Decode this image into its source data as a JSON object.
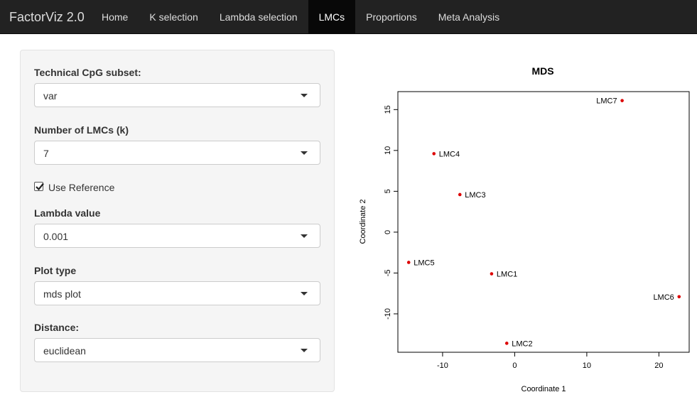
{
  "navbar": {
    "brand": "FactorViz 2.0",
    "items": [
      {
        "label": "Home",
        "active": false
      },
      {
        "label": "K selection",
        "active": false
      },
      {
        "label": "Lambda selection",
        "active": false
      },
      {
        "label": "LMCs",
        "active": true
      },
      {
        "label": "Proportions",
        "active": false
      },
      {
        "label": "Meta Analysis",
        "active": false
      }
    ]
  },
  "sidebar": {
    "cpg_subset": {
      "label": "Technical CpG subset:",
      "value": "var"
    },
    "num_lmcs": {
      "label": "Number of LMCs (k)",
      "value": "7"
    },
    "use_reference": {
      "label": "Use Reference",
      "checked": true
    },
    "lambda": {
      "label": "Lambda value",
      "value": "0.001"
    },
    "plot_type": {
      "label": "Plot type",
      "value": "mds plot"
    },
    "distance": {
      "label": "Distance:",
      "value": "euclidean"
    }
  },
  "chart_data": {
    "type": "scatter",
    "title": "MDS",
    "xlabel": "Coordinate 1",
    "ylabel": "Coordinate 2",
    "xlim": [
      -16.2,
      24.2
    ],
    "ylim": [
      -14.7,
      17.2
    ],
    "xticks": [
      -10,
      0,
      10,
      20
    ],
    "yticks": [
      -10,
      -5,
      0,
      5,
      10,
      15
    ],
    "point_color": "#dd0000",
    "points": [
      {
        "label": "LMC1",
        "x": -3.2,
        "y": -5.1,
        "label_side": "right"
      },
      {
        "label": "LMC2",
        "x": -1.1,
        "y": -13.6,
        "label_side": "right"
      },
      {
        "label": "LMC3",
        "x": -7.6,
        "y": 4.6,
        "label_side": "right"
      },
      {
        "label": "LMC4",
        "x": -11.2,
        "y": 9.6,
        "label_side": "right"
      },
      {
        "label": "LMC5",
        "x": -14.7,
        "y": -3.7,
        "label_side": "right"
      },
      {
        "label": "LMC6",
        "x": 22.8,
        "y": -7.9,
        "label_side": "left"
      },
      {
        "label": "LMC7",
        "x": 14.9,
        "y": 16.1,
        "label_side": "left"
      }
    ]
  }
}
